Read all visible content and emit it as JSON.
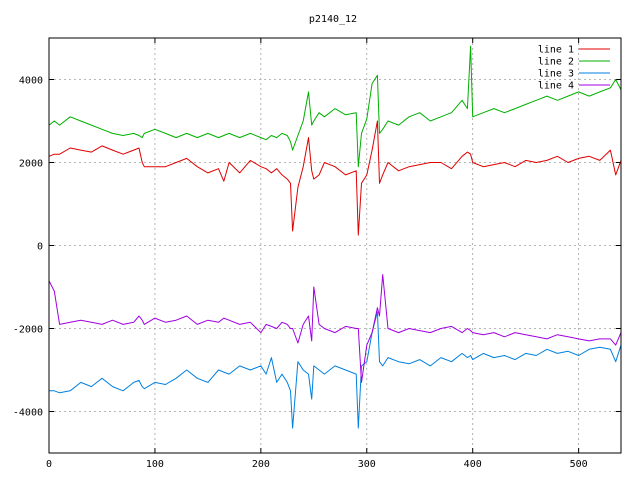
{
  "chart_data": {
    "type": "line",
    "title": "p2140_12",
    "xlim": [
      0,
      540
    ],
    "ylim": [
      -5000,
      5000
    ],
    "xticks": [
      0,
      100,
      200,
      300,
      400,
      500
    ],
    "yticks": [
      -4000,
      -2000,
      0,
      2000,
      4000
    ],
    "grid": true,
    "legend_position": "top-right",
    "xlabel": "",
    "ylabel": "",
    "x": [
      0,
      5,
      10,
      20,
      30,
      40,
      50,
      60,
      70,
      80,
      85,
      88,
      90,
      100,
      110,
      120,
      130,
      140,
      150,
      160,
      165,
      170,
      180,
      190,
      200,
      205,
      210,
      215,
      220,
      225,
      228,
      230,
      235,
      240,
      245,
      248,
      250,
      255,
      260,
      270,
      280,
      290,
      292,
      295,
      300,
      305,
      310,
      312,
      315,
      320,
      330,
      340,
      350,
      360,
      370,
      380,
      390,
      395,
      398,
      400,
      410,
      420,
      430,
      440,
      450,
      460,
      470,
      480,
      490,
      500,
      510,
      520,
      530,
      535,
      540
    ],
    "series": [
      {
        "name": "line 1",
        "color": "#e00000",
        "values": [
          2150,
          2200,
          2200,
          2350,
          2300,
          2250,
          2400,
          2300,
          2200,
          2300,
          2350,
          2000,
          1900,
          1900,
          1900,
          2000,
          2100,
          1900,
          1750,
          1850,
          1550,
          2000,
          1750,
          2050,
          1900,
          1850,
          1750,
          1850,
          1700,
          1600,
          1500,
          350,
          1400,
          1900,
          2600,
          1800,
          1600,
          1700,
          2000,
          1900,
          1700,
          1800,
          250,
          1500,
          1700,
          2300,
          3000,
          1500,
          1700,
          2000,
          1800,
          1900,
          1950,
          2000,
          2000,
          1850,
          2150,
          2250,
          2200,
          2000,
          1900,
          1950,
          2000,
          1900,
          2050,
          2000,
          2050,
          2150,
          2000,
          2100,
          2150,
          2050,
          2300,
          1700,
          2050
        ]
      },
      {
        "name": "line 2",
        "color": "#00b000",
        "values": [
          2900,
          3000,
          2900,
          3100,
          3000,
          2900,
          2800,
          2700,
          2650,
          2700,
          2650,
          2600,
          2700,
          2800,
          2700,
          2600,
          2700,
          2600,
          2700,
          2600,
          2650,
          2700,
          2600,
          2700,
          2600,
          2550,
          2650,
          2600,
          2700,
          2650,
          2500,
          2300,
          2650,
          3000,
          3700,
          2900,
          3000,
          3200,
          3100,
          3300,
          3150,
          3200,
          1900,
          2700,
          3050,
          3900,
          4100,
          2700,
          2800,
          3000,
          2900,
          3100,
          3200,
          3000,
          3100,
          3200,
          3500,
          3300,
          4800,
          3100,
          3200,
          3300,
          3200,
          3300,
          3400,
          3500,
          3600,
          3500,
          3600,
          3700,
          3600,
          3700,
          3800,
          4000,
          3750
        ]
      },
      {
        "name": "line 3",
        "color": "#0080e0",
        "values": [
          -3500,
          -3500,
          -3550,
          -3500,
          -3300,
          -3400,
          -3200,
          -3400,
          -3500,
          -3300,
          -3250,
          -3400,
          -3450,
          -3300,
          -3350,
          -3200,
          -3000,
          -3200,
          -3300,
          -3000,
          -3050,
          -3100,
          -2900,
          -3000,
          -2900,
          -3100,
          -2700,
          -3300,
          -3100,
          -3300,
          -3500,
          -4400,
          -2800,
          -3000,
          -3100,
          -3700,
          -2900,
          -3000,
          -3100,
          -2900,
          -3000,
          -3100,
          -4400,
          -2900,
          -2800,
          -2100,
          -1600,
          -2800,
          -2900,
          -2700,
          -2800,
          -2850,
          -2750,
          -2900,
          -2700,
          -2800,
          -2600,
          -2700,
          -2650,
          -2750,
          -2600,
          -2700,
          -2650,
          -2750,
          -2600,
          -2650,
          -2500,
          -2600,
          -2550,
          -2650,
          -2500,
          -2450,
          -2500,
          -2800,
          -2400
        ]
      },
      {
        "name": "line 4",
        "color": "#a000e0",
        "values": [
          -850,
          -1100,
          -1900,
          -1850,
          -1800,
          -1850,
          -1900,
          -1800,
          -1900,
          -1850,
          -1700,
          -1800,
          -1900,
          -1750,
          -1850,
          -1800,
          -1700,
          -1900,
          -1800,
          -1850,
          -1750,
          -1800,
          -1900,
          -1850,
          -2100,
          -1900,
          -1950,
          -2000,
          -1850,
          -1900,
          -2000,
          -2000,
          -2350,
          -1900,
          -1700,
          -2300,
          -1000,
          -1900,
          -2000,
          -2100,
          -1950,
          -2000,
          -2000,
          -3300,
          -2400,
          -2100,
          -1500,
          -1700,
          -700,
          -2000,
          -2100,
          -2000,
          -2050,
          -2100,
          -2000,
          -1950,
          -2100,
          -2000,
          -2050,
          -2100,
          -2150,
          -2100,
          -2200,
          -2100,
          -2150,
          -2200,
          -2250,
          -2150,
          -2200,
          -2250,
          -2300,
          -2250,
          -2250,
          -2400,
          -2100
        ]
      }
    ]
  }
}
